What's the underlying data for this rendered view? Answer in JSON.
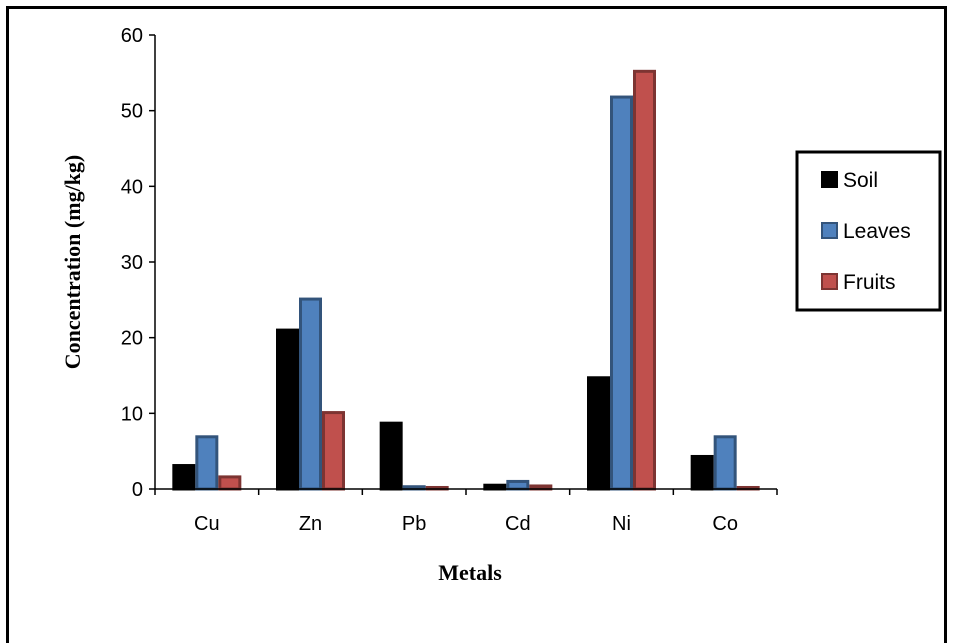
{
  "chart_data": {
    "type": "bar",
    "categories": [
      "Cu",
      "Zn",
      "Pb",
      "Cd",
      "Ni",
      "Co"
    ],
    "series": [
      {
        "name": "Soil",
        "values": [
          3.1,
          21.0,
          8.7,
          0.5,
          14.7,
          4.3
        ],
        "color": "#000000"
      },
      {
        "name": "Leaves",
        "values": [
          6.9,
          25.1,
          0.3,
          1.0,
          51.8,
          6.9
        ],
        "color": "#4F81BD"
      },
      {
        "name": "Fruits",
        "values": [
          1.6,
          10.1,
          0.2,
          0.4,
          55.2,
          0.2
        ],
        "color": "#C0504D"
      }
    ],
    "ylabel": "Concentration (mg/kg)",
    "xlabel": "Metals",
    "ylim": [
      0,
      60
    ],
    "yticks": [
      0,
      10,
      20,
      30,
      40,
      50,
      60
    ],
    "grid": false,
    "legend_position": "right"
  }
}
